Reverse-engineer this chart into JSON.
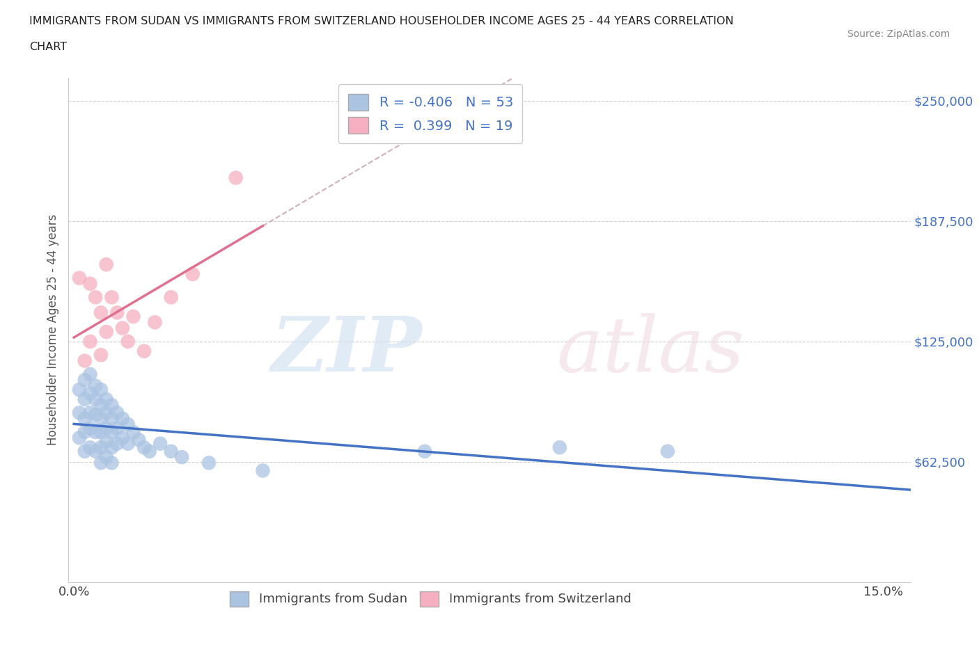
{
  "title_line1": "IMMIGRANTS FROM SUDAN VS IMMIGRANTS FROM SWITZERLAND HOUSEHOLDER INCOME AGES 25 - 44 YEARS CORRELATION",
  "title_line2": "CHART",
  "source_text": "Source: ZipAtlas.com",
  "ylabel": "Householder Income Ages 25 - 44 years",
  "xlim": [
    -0.001,
    0.155
  ],
  "ylim": [
    0,
    262000
  ],
  "yticks": [
    0,
    62500,
    125000,
    187500,
    250000
  ],
  "ytick_labels": [
    "",
    "$62,500",
    "$125,000",
    "$187,500",
    "$250,000"
  ],
  "xticks": [
    0.0,
    0.03,
    0.06,
    0.09,
    0.12,
    0.15
  ],
  "xtick_labels": [
    "0.0%",
    "",
    "",
    "",
    "",
    "15.0%"
  ],
  "sudan_color": "#aac4e2",
  "switzerland_color": "#f5afc0",
  "sudan_line_color": "#4472c4",
  "switzerland_line_color": "#e07090",
  "dash_color": "#d0b0b8",
  "sudan_R": -0.406,
  "sudan_N": 53,
  "switzerland_R": 0.399,
  "switzerland_N": 19,
  "sudan_scatter_x": [
    0.001,
    0.001,
    0.001,
    0.002,
    0.002,
    0.002,
    0.002,
    0.002,
    0.003,
    0.003,
    0.003,
    0.003,
    0.003,
    0.004,
    0.004,
    0.004,
    0.004,
    0.004,
    0.005,
    0.005,
    0.005,
    0.005,
    0.005,
    0.005,
    0.006,
    0.006,
    0.006,
    0.006,
    0.006,
    0.007,
    0.007,
    0.007,
    0.007,
    0.007,
    0.008,
    0.008,
    0.008,
    0.009,
    0.009,
    0.01,
    0.01,
    0.011,
    0.012,
    0.013,
    0.014,
    0.016,
    0.018,
    0.02,
    0.025,
    0.035,
    0.065,
    0.09,
    0.11
  ],
  "sudan_scatter_y": [
    100000,
    88000,
    75000,
    105000,
    95000,
    85000,
    78000,
    68000,
    108000,
    98000,
    88000,
    80000,
    70000,
    102000,
    95000,
    87000,
    78000,
    68000,
    100000,
    92000,
    85000,
    78000,
    70000,
    62000,
    95000,
    88000,
    80000,
    73000,
    65000,
    92000,
    85000,
    78000,
    70000,
    62000,
    88000,
    80000,
    72000,
    85000,
    75000,
    82000,
    72000,
    78000,
    74000,
    70000,
    68000,
    72000,
    68000,
    65000,
    62000,
    58000,
    68000,
    70000,
    68000
  ],
  "switzerland_scatter_x": [
    0.001,
    0.002,
    0.003,
    0.003,
    0.004,
    0.005,
    0.005,
    0.006,
    0.006,
    0.007,
    0.008,
    0.009,
    0.01,
    0.011,
    0.013,
    0.015,
    0.018,
    0.022,
    0.03
  ],
  "switzerland_scatter_y": [
    158000,
    115000,
    155000,
    125000,
    148000,
    140000,
    118000,
    165000,
    130000,
    148000,
    140000,
    132000,
    125000,
    138000,
    120000,
    135000,
    148000,
    160000,
    210000
  ],
  "sudan_line_x0": 0.0,
  "sudan_line_y0": 98000,
  "sudan_line_x1": 0.15,
  "sudan_line_y1": 18000,
  "switz_line_x0": 0.0,
  "switz_line_y0": 108000,
  "switz_line_x1": 0.035,
  "switz_line_y1": 175000,
  "dash_line_x0": 0.0,
  "dash_line_y0": 108000,
  "dash_line_x1": 0.155,
  "dash_line_y1": 262000
}
